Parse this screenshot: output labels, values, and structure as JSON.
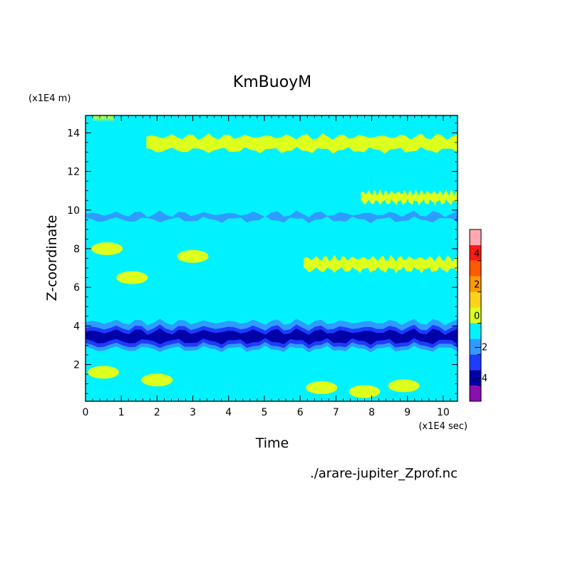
{
  "chart_data": {
    "type": "heatmap",
    "title": "KmBuoyM",
    "xlabel": "Time",
    "ylabel": "Z-coordinate",
    "x_unit": "(x1E4 sec)",
    "y_unit": "(x1E4 m)",
    "source_label": "./arare-jupiter_Zprof.nc",
    "xlim": [
      0,
      10.4
    ],
    "ylim": [
      0.1,
      14.9
    ],
    "x_ticks": [
      "0",
      "1",
      "2",
      "3",
      "4",
      "5",
      "6",
      "7",
      "8",
      "9",
      "10"
    ],
    "y_ticks": [
      "2",
      "4",
      "6",
      "8",
      "10",
      "12",
      "14"
    ],
    "colorbar": {
      "tick_labels": [
        "4",
        "2",
        "0",
        "−2",
        "−4"
      ],
      "tick_values": [
        4,
        2,
        0,
        -2,
        -4
      ],
      "levels": [
        {
          "from": -5,
          "to": -4,
          "color": "#8a0fb0"
        },
        {
          "from": -4,
          "to": -3,
          "color": "#0000a8"
        },
        {
          "from": -3,
          "to": -2,
          "color": "#1c3cff"
        },
        {
          "from": -2,
          "to": -1,
          "color": "#2f9bff"
        },
        {
          "from": -1,
          "to": 0,
          "color": "#00f2ff"
        },
        {
          "from": 0,
          "to": 1,
          "color": "#dcff1e"
        },
        {
          "from": 1,
          "to": 2,
          "color": "#ffd21c"
        },
        {
          "from": 2,
          "to": 3,
          "color": "#ff9a00"
        },
        {
          "from": 3,
          "to": 4,
          "color": "#ff5a00"
        },
        {
          "from": 4,
          "to": 5,
          "color": "#ff1a14"
        },
        {
          "from": 5,
          "to": 6,
          "color": "#ffa8b0"
        }
      ]
    },
    "field_background": -0.5,
    "features": {
      "positive_bands": [
        {
          "x": [
            1.7,
            10.4
          ],
          "z": [
            13.1,
            13.8
          ],
          "value": 0.5
        },
        {
          "x": [
            7.7,
            10.4
          ],
          "z": [
            10.4,
            10.9
          ],
          "value": 0.5
        },
        {
          "x": [
            6.1,
            10.4
          ],
          "z": [
            6.9,
            7.5
          ],
          "value": 0.5
        },
        {
          "x": [
            0.2,
            0.8
          ],
          "z": [
            14.7,
            14.9
          ],
          "value": 0.5
        }
      ],
      "negative_bands": [
        {
          "x": [
            0,
            10.4
          ],
          "z": [
            2.8,
            4.2
          ],
          "value": -1.5
        },
        {
          "x": [
            0,
            10.4
          ],
          "z": [
            3.0,
            3.9
          ],
          "value": -2.5
        },
        {
          "x": [
            0,
            10.4
          ],
          "z": [
            3.2,
            3.7
          ],
          "value": -3.5
        },
        {
          "x": [
            0,
            10.4
          ],
          "z": [
            9.5,
            9.8
          ],
          "value": -1.5
        }
      ],
      "positive_patches": [
        {
          "x": 0.6,
          "z": 8.0,
          "value": 0.5
        },
        {
          "x": 1.3,
          "z": 6.5,
          "value": 0.5
        },
        {
          "x": 3.0,
          "z": 7.6,
          "value": 0.5
        },
        {
          "x": 0.5,
          "z": 1.6,
          "value": 0.5
        },
        {
          "x": 2.0,
          "z": 1.2,
          "value": 0.5
        },
        {
          "x": 6.6,
          "z": 0.8,
          "value": 0.5
        },
        {
          "x": 7.8,
          "z": 0.6,
          "value": 0.5
        },
        {
          "x": 8.9,
          "z": 0.9,
          "value": 0.5
        }
      ]
    }
  }
}
